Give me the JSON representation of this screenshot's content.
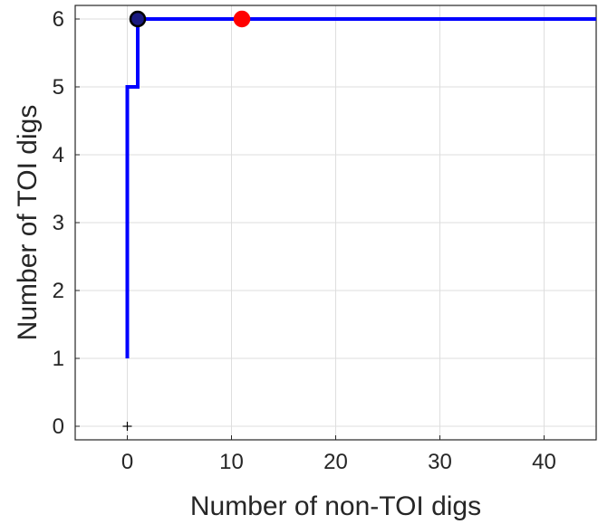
{
  "chart_data": {
    "type": "line",
    "xlabel": "Number of non-TOI digs",
    "ylabel": "Number of TOI digs",
    "xlim": [
      -5,
      45
    ],
    "ylim": [
      -0.2,
      6.2
    ],
    "xticks": [
      0,
      10,
      20,
      30,
      40
    ],
    "yticks": [
      0,
      1,
      2,
      3,
      4,
      5,
      6
    ],
    "grid": true,
    "series": [
      {
        "style": "step",
        "color": "#0000ff",
        "points": [
          [
            0,
            1
          ],
          [
            0,
            5
          ],
          [
            1,
            5
          ],
          [
            1,
            6
          ],
          [
            45,
            6
          ]
        ]
      }
    ],
    "markers": [
      {
        "shape": "plus",
        "x": 0,
        "y": 0,
        "color": "#000000"
      },
      {
        "shape": "circle",
        "x": 1,
        "y": 6,
        "color": "#1a1a80",
        "edge": "#000000"
      },
      {
        "shape": "circle",
        "x": 11,
        "y": 6,
        "color": "#ff0000",
        "edge": "#ff0000"
      }
    ]
  }
}
